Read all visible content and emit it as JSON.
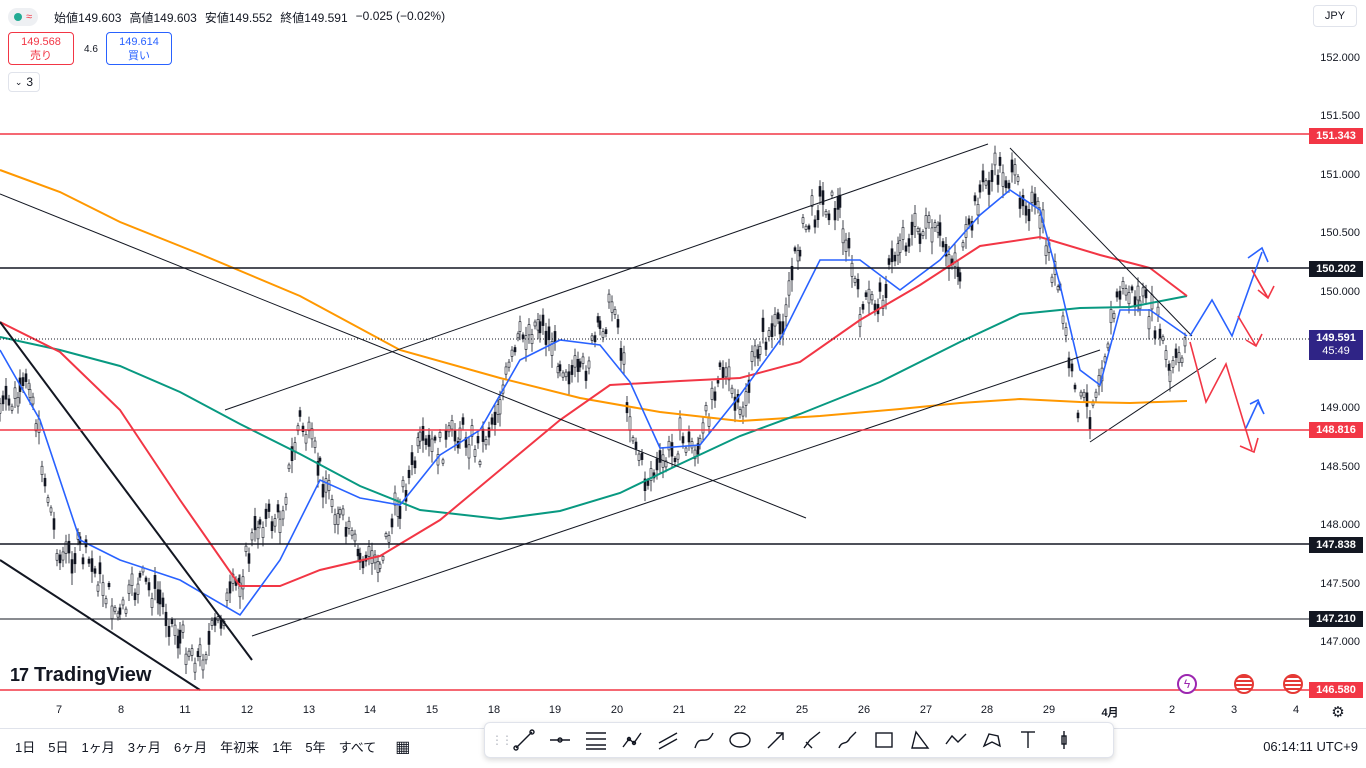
{
  "header": {
    "ohlc": {
      "open_label": "始値",
      "open": "149.603",
      "high_label": "高値",
      "high": "149.603",
      "low_label": "安値",
      "low": "149.552",
      "close_label": "終値",
      "close": "149.591",
      "change": "−0.025 (−0.02%)"
    },
    "sell": {
      "price": "149.568",
      "label": "売り"
    },
    "buy": {
      "price": "149.614",
      "label": "買い"
    },
    "spread": "4.6",
    "indicator_count": "3",
    "currency": "JPY"
  },
  "price_axis": {
    "ticks": [
      "152.000",
      "151.500",
      "151.000",
      "150.500",
      "150.000",
      "149.000",
      "148.500",
      "148.000",
      "147.500",
      "147.000"
    ],
    "tags": [
      {
        "label": "151.343",
        "color": "#f23645"
      },
      {
        "label": "150.202",
        "color": "#131722"
      },
      {
        "label": "148.816",
        "color": "#f23645"
      },
      {
        "label": "147.838",
        "color": "#131722"
      },
      {
        "label": "147.210",
        "color": "#131722"
      },
      {
        "label": "146.580",
        "color": "#f23645"
      }
    ],
    "current": {
      "price": "149.591",
      "countdown": "45:49"
    }
  },
  "time_axis": {
    "labels": [
      "7",
      "8",
      "11",
      "12",
      "13",
      "14",
      "15",
      "18",
      "19",
      "20",
      "21",
      "22",
      "25",
      "26",
      "27",
      "28",
      "29",
      "4月",
      "2",
      "3",
      "4"
    ]
  },
  "bottom_bar": {
    "ranges": [
      "1日",
      "5日",
      "1ヶ月",
      "3ヶ月",
      "6ヶ月",
      "年初来",
      "1年",
      "5年",
      "すべて"
    ],
    "clock": "06:14:11 UTC+9"
  },
  "logo": {
    "text": "TradingView"
  },
  "drawing_tools": [
    "trend-line",
    "horizontal-ray",
    "fib-retracement",
    "xabcd-pattern",
    "parallel-channel",
    "path",
    "ellipse",
    "arrow",
    "brush",
    "highlighter",
    "rectangle",
    "triangle",
    "polyline",
    "pattern",
    "text",
    "long-position"
  ],
  "colors": {
    "ma_fast": "#2962ff",
    "ma_mid": "#f23645",
    "ma_slow": "#089981",
    "ma_long": "#ff9800",
    "up": "#131722",
    "level_red": "#f23645",
    "level_black": "#131722"
  },
  "chart_data": {
    "type": "candlestick",
    "symbol_currency": "JPY",
    "ylim": [
      146.5,
      152.2
    ],
    "horizontal_levels": [
      151.343,
      150.202,
      148.816,
      147.838,
      147.21,
      146.58
    ],
    "last_price": 149.591
  }
}
